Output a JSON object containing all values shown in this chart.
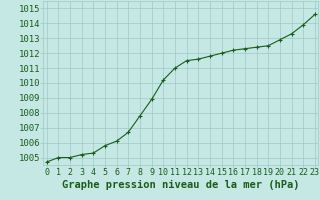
{
  "x": [
    0,
    1,
    2,
    3,
    4,
    5,
    6,
    7,
    8,
    9,
    10,
    11,
    12,
    13,
    14,
    15,
    16,
    17,
    18,
    19,
    20,
    21,
    22,
    23
  ],
  "y": [
    1004.7,
    1005.0,
    1005.0,
    1005.2,
    1005.3,
    1005.8,
    1006.1,
    1006.7,
    1007.8,
    1008.9,
    1010.2,
    1011.0,
    1011.5,
    1011.6,
    1011.8,
    1012.0,
    1012.2,
    1012.3,
    1012.4,
    1012.5,
    1012.9,
    1013.3,
    1013.9,
    1014.6
  ],
  "ylim_min": 1004.5,
  "ylim_max": 1015.5,
  "yticks": [
    1005,
    1006,
    1007,
    1008,
    1009,
    1010,
    1011,
    1012,
    1013,
    1014,
    1015
  ],
  "xticks": [
    0,
    1,
    2,
    3,
    4,
    5,
    6,
    7,
    8,
    9,
    10,
    11,
    12,
    13,
    14,
    15,
    16,
    17,
    18,
    19,
    20,
    21,
    22,
    23
  ],
  "line_color": "#1a5c1a",
  "marker": "+",
  "marker_size": 3.5,
  "marker_lw": 0.8,
  "line_width": 0.8,
  "xlabel": "Graphe pression niveau de la mer (hPa)",
  "bg_color": "#c5e8e5",
  "grid_color": "#9dc8c5",
  "label_color": "#1a5c1a",
  "tick_label_color": "#1a5c1a",
  "xlabel_fontsize": 7.5,
  "ytick_fontsize": 6.5,
  "xtick_fontsize": 6.0,
  "xlim_min": -0.3,
  "xlim_max": 23.3
}
